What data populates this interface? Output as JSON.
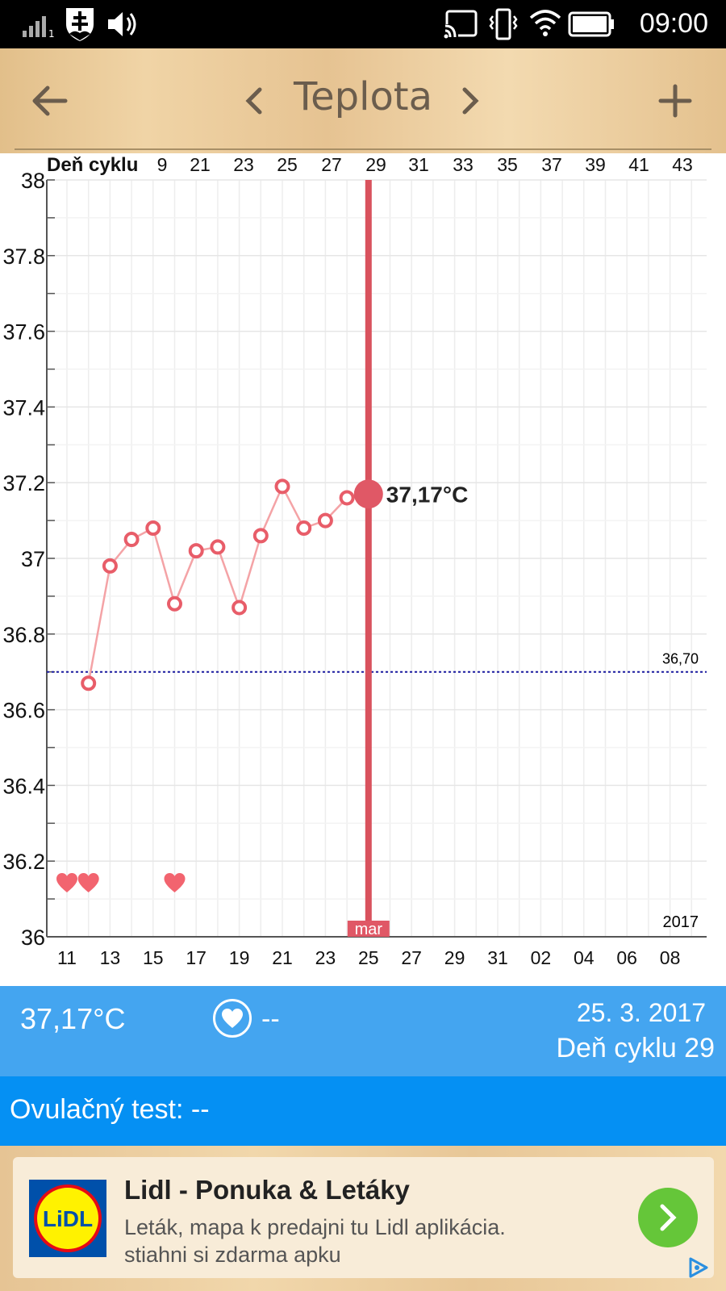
{
  "status_bar": {
    "time": "09:00"
  },
  "toolbar": {
    "title": "Teplota"
  },
  "chart_data": {
    "type": "line",
    "top_axis_label": "Deň cyklu",
    "top_ticks": [
      "9",
      "21",
      "23",
      "25",
      "27",
      "29",
      "31",
      "33",
      "35",
      "37",
      "39",
      "41",
      "43"
    ],
    "bottom_ticks": [
      "11",
      "13",
      "15",
      "17",
      "19",
      "21",
      "23",
      "25",
      "27",
      "29",
      "31",
      "02",
      "04",
      "06",
      "08"
    ],
    "y_ticks": [
      "38",
      "37.8",
      "37.6",
      "37.4",
      "37.2",
      "37",
      "36.8",
      "36.6",
      "36.4",
      "36.2",
      "36"
    ],
    "ylim": [
      36,
      38
    ],
    "x": [
      12,
      13,
      14,
      15,
      16,
      17,
      18,
      19,
      20,
      21,
      22,
      23,
      24,
      25
    ],
    "y": [
      36.67,
      36.98,
      37.05,
      37.08,
      36.88,
      37.02,
      37.03,
      36.87,
      37.06,
      37.19,
      37.08,
      37.1,
      37.16,
      37.17
    ],
    "selected_label": "37,17°C",
    "coverline_label": "36,70",
    "coverline_value": 36.7,
    "hearts_x": [
      11,
      12,
      16
    ],
    "month_label": "mar",
    "year_label": "2017"
  },
  "info": {
    "temperature": "37,17°C",
    "sex_value": "--",
    "date": "25. 3. 2017",
    "cycle_day": "Deň cyklu 29"
  },
  "ovulation": {
    "label": "Ovulačný test: --"
  },
  "ad": {
    "title": "Lidl - Ponuka & Letáky",
    "line1": "Leták, mapa k predajni tu Lidl aplikácia.",
    "line2": "stiahni si zdarma apku",
    "logo_text": "LiDL"
  }
}
